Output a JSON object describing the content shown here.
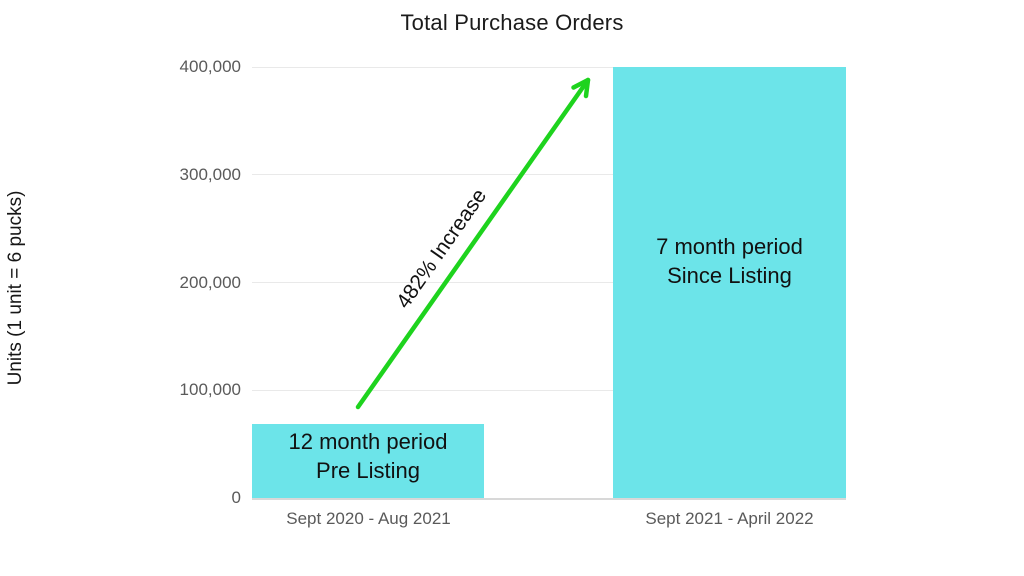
{
  "title": "Total Purchase Orders",
  "y_axis_label": "Units (1 unit = 6 pucks)",
  "annotation": {
    "text": "482% Increase"
  },
  "colors": {
    "bar_fill": "#6CE4E9",
    "arrow_green": "#1ED31E",
    "axis_text_gray": "#5A5A5A",
    "title_text": "#1B1B1B",
    "gridline": "#E9E9E9"
  },
  "chart_data": {
    "type": "bar",
    "title": "Total Purchase Orders",
    "xlabel": "",
    "ylabel": "Units (1 unit = 6 pucks)",
    "categories": [
      "Sept 2020 - Aug 2021",
      "Sept 2021 - April 2022"
    ],
    "values": [
      68700,
      400000
    ],
    "bar_labels": [
      [
        "12 month period",
        "Pre Listing"
      ],
      [
        "7 month period",
        "Since Listing"
      ]
    ],
    "annotation": "482% Increase",
    "ylim": [
      0,
      400000
    ],
    "yticks": [
      0,
      100000,
      200000,
      300000,
      400000
    ],
    "ytick_labels": [
      "0",
      "100,000",
      "200,000",
      "300,000",
      "400,000"
    ],
    "grid": true,
    "legend": false
  }
}
